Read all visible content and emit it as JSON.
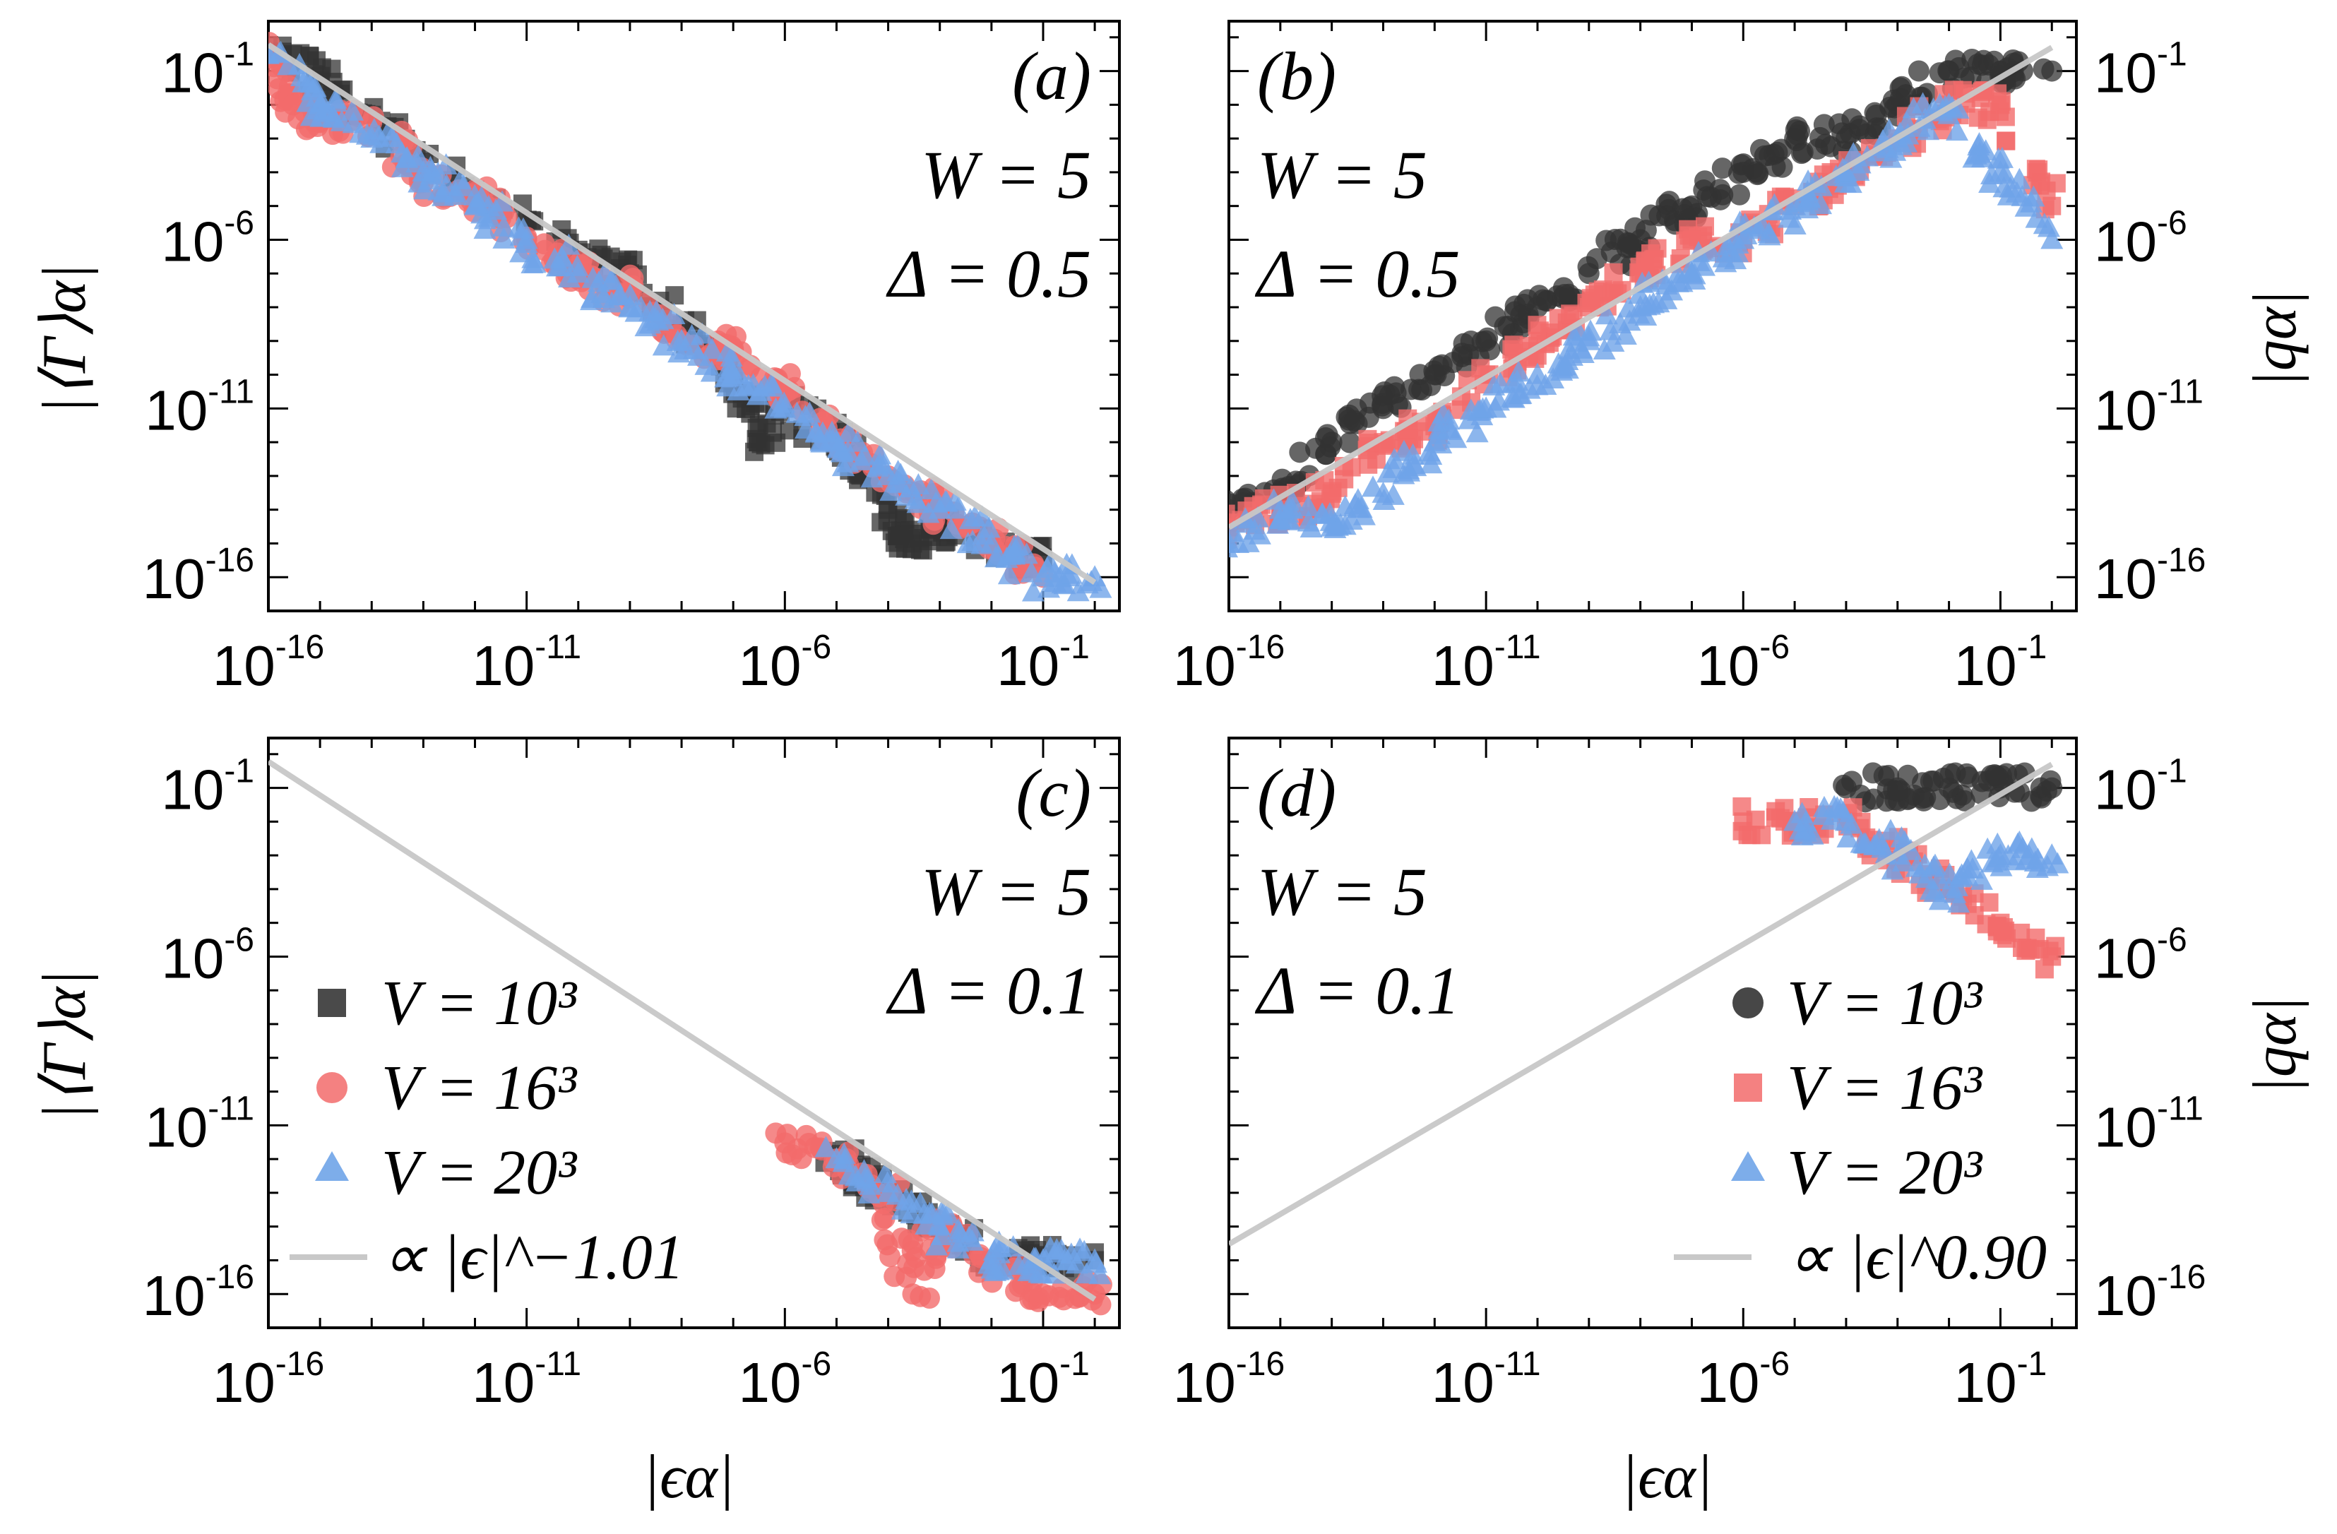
{
  "figure": {
    "x_axis_title": "|ϵα|",
    "left_y_axis_title": "|⟨Γ⟩α|",
    "right_y_axis_title": "|qα|"
  },
  "legend_left": {
    "entries": [
      {
        "label": "V = 10³",
        "marker": "square",
        "color": "#333333"
      },
      {
        "label": "V = 16³",
        "marker": "circle",
        "color": "#f26b6b"
      },
      {
        "label": "V = 20³",
        "marker": "triangle",
        "color": "#6fa4e8"
      }
    ],
    "fit_label": "∝ |ϵ|^−1.01"
  },
  "legend_right": {
    "entries": [
      {
        "label": "V = 10³",
        "marker": "circle",
        "color": "#333333"
      },
      {
        "label": "V = 16³",
        "marker": "square",
        "color": "#f26b6b"
      },
      {
        "label": "V = 20³",
        "marker": "triangle",
        "color": "#6fa4e8"
      }
    ],
    "fit_label": "∝ |ϵ|^0.90"
  },
  "chart_data": [
    {
      "type": "scatter",
      "panel": "(a)",
      "annotation": [
        "W = 5",
        "Δ = 0.5"
      ],
      "xlabel": "",
      "ylabel": "|⟨Γ⟩α|",
      "x_scale": "log",
      "y_scale": "log",
      "xlim": [
        1e-16,
        3.0
      ],
      "ylim": [
        1e-17,
        3.0
      ],
      "x_ticks": [
        "10^-16",
        "10^-11",
        "10^-6",
        "10^-1"
      ],
      "y_ticks": [
        "10^-1",
        "10^-6",
        "10^-11",
        "10^-16"
      ],
      "fit": {
        "exponent": -1.01,
        "points": [
          [
            1e-16,
            0.6
          ],
          [
            1.0,
            7e-17
          ]
        ]
      },
      "series": [
        {
          "name": "V = 10³",
          "marker": "square",
          "color": "#333333",
          "points": [
            [
              1e-16,
              0.5
            ],
            [
              1e-15,
              0.05
            ],
            [
              1e-14,
              0.005
            ],
            [
              1e-12,
              3e-05
            ],
            [
              1e-10,
              5e-07
            ],
            [
              1e-09,
              1e-07
            ],
            [
              1e-08,
              3e-09
            ],
            [
              1e-07,
              1e-10
            ],
            [
              3e-07,
              1e-12
            ],
            [
              1e-06,
              1e-11
            ],
            [
              1e-05,
              1e-12
            ],
            [
              3e-05,
              3e-13
            ],
            [
              0.0001,
              1e-14
            ],
            [
              0.0003,
              1e-15
            ],
            [
              0.001,
              3e-15
            ],
            [
              0.01,
              1e-15
            ],
            [
              0.1,
              3e-16
            ]
          ]
        },
        {
          "name": "V = 16³",
          "marker": "circle",
          "color": "#f26b6b",
          "points": [
            [
              1e-16,
              0.3
            ],
            [
              3e-16,
              0.01
            ],
            [
              1e-15,
              0.003
            ],
            [
              1e-14,
              0.003
            ],
            [
              1e-13,
              5e-05
            ],
            [
              1e-12,
              3e-05
            ],
            [
              1e-11,
              1e-06
            ],
            [
              1e-10,
              1e-07
            ],
            [
              1e-09,
              3e-08
            ],
            [
              1e-08,
              1e-09
            ],
            [
              1e-07,
              5e-10
            ],
            [
              1e-06,
              3e-11
            ],
            [
              1e-05,
              1e-12
            ],
            [
              0.0001,
              1e-13
            ],
            [
              0.001,
              1e-14
            ],
            [
              0.01,
              1e-15
            ],
            [
              0.1,
              1e-16
            ]
          ]
        },
        {
          "name": "V = 20³",
          "marker": "triangle",
          "color": "#6fa4e8",
          "points": [
            [
              1e-16,
              0.3
            ],
            [
              1e-15,
              0.01
            ],
            [
              1e-14,
              0.001
            ],
            [
              1e-13,
              0.0001
            ],
            [
              1e-12,
              1e-05
            ],
            [
              1e-11,
              1e-06
            ],
            [
              1e-10,
              1e-07
            ],
            [
              1e-09,
              1e-08
            ],
            [
              1e-08,
              1e-09
            ],
            [
              1e-07,
              1e-10
            ],
            [
              1e-06,
              1e-11
            ],
            [
              1e-05,
              1e-12
            ],
            [
              0.0001,
              1e-13
            ],
            [
              0.001,
              1e-14
            ],
            [
              0.01,
              1e-15
            ],
            [
              0.1,
              1e-16
            ],
            [
              1.0,
              1e-16
            ]
          ]
        }
      ]
    },
    {
      "type": "scatter",
      "panel": "(b)",
      "annotation": [
        "W = 5",
        "Δ = 0.5"
      ],
      "xlabel": "",
      "ylabel": "|qα|",
      "x_scale": "log",
      "y_scale": "log",
      "xlim": [
        1e-16,
        3.0
      ],
      "ylim": [
        1e-17,
        3.0
      ],
      "x_ticks": [
        "10^-16",
        "10^-11",
        "10^-6",
        "10^-1"
      ],
      "y_ticks": [
        "10^-1",
        "10^-6",
        "10^-11",
        "10^-16"
      ],
      "fit": {
        "exponent": 0.9,
        "points": [
          [
            1e-16,
            3e-15
          ],
          [
            1.0,
            0.5
          ]
        ]
      },
      "series": [
        {
          "name": "V = 10³",
          "marker": "circle",
          "color": "#333333",
          "points": [
            [
              1e-16,
              1e-14
            ],
            [
              1e-15,
              3e-14
            ],
            [
              1e-14,
              1e-12
            ],
            [
              1e-13,
              1e-11
            ],
            [
              1e-12,
              1e-10
            ],
            [
              1e-11,
              1e-09
            ],
            [
              1e-10,
              1e-08
            ],
            [
              1e-09,
              1e-07
            ],
            [
              1e-08,
              1e-06
            ],
            [
              1e-07,
              1e-05
            ],
            [
              1e-06,
              0.0001
            ],
            [
              1e-05,
              0.001
            ],
            [
              0.0001,
              0.001
            ],
            [
              0.001,
              0.01
            ],
            [
              0.01,
              0.1
            ],
            [
              0.1,
              0.1
            ],
            [
              1.0,
              0.1
            ]
          ]
        },
        {
          "name": "V = 16³",
          "marker": "square",
          "color": "#f26b6b",
          "points": [
            [
              1e-16,
              3e-15
            ],
            [
              1e-15,
              1e-14
            ],
            [
              1e-14,
              3e-14
            ],
            [
              1e-13,
              1e-12
            ],
            [
              1e-12,
              3e-12
            ],
            [
              1e-11,
              1e-10
            ],
            [
              1e-10,
              1e-09
            ],
            [
              1e-09,
              1e-08
            ],
            [
              1e-08,
              1e-07
            ],
            [
              1e-07,
              1e-06
            ],
            [
              1e-06,
              1e-06
            ],
            [
              1e-05,
              1e-05
            ],
            [
              0.0001,
              0.0001
            ],
            [
              0.001,
              0.001
            ],
            [
              0.01,
              0.01
            ],
            [
              0.1,
              0.01
            ],
            [
              1.0,
              1e-05
            ]
          ]
        },
        {
          "name": "V = 20³",
          "marker": "triangle",
          "color": "#6fa4e8",
          "points": [
            [
              1e-16,
              1e-15
            ],
            [
              1e-15,
              1e-14
            ],
            [
              1e-14,
              3e-15
            ],
            [
              1e-13,
              3e-14
            ],
            [
              1e-12,
              1e-12
            ],
            [
              1e-11,
              1e-11
            ],
            [
              1e-10,
              1e-10
            ],
            [
              1e-09,
              1e-09
            ],
            [
              1e-08,
              1e-08
            ],
            [
              1e-07,
              1e-07
            ],
            [
              1e-06,
              1e-06
            ],
            [
              1e-05,
              1e-05
            ],
            [
              0.0001,
              0.0001
            ],
            [
              0.001,
              0.001
            ],
            [
              0.01,
              0.01
            ],
            [
              0.1,
              0.0001
            ],
            [
              1.0,
              1e-06
            ]
          ]
        }
      ]
    },
    {
      "type": "scatter",
      "panel": "(c)",
      "annotation": [
        "W = 5",
        "Δ = 0.1"
      ],
      "xlabel": "|ϵα|",
      "ylabel": "|⟨Γ⟩α|",
      "x_scale": "log",
      "y_scale": "log",
      "xlim": [
        1e-16,
        3.0
      ],
      "ylim": [
        1e-17,
        3.0
      ],
      "x_ticks": [
        "10^-16",
        "10^-11",
        "10^-6",
        "10^-1"
      ],
      "y_ticks": [
        "10^-1",
        "10^-6",
        "10^-11",
        "10^-16"
      ],
      "fit": {
        "exponent": -1.01,
        "points": [
          [
            1e-16,
            0.6
          ],
          [
            1.0,
            7e-17
          ]
        ]
      },
      "series": [
        {
          "name": "V = 10³",
          "marker": "square",
          "color": "#333333",
          "points": [
            [
              1e-05,
              1e-12
            ],
            [
              3e-05,
              3e-13
            ],
            [
              0.0001,
              1e-13
            ],
            [
              0.001,
              1e-14
            ],
            [
              0.01,
              1e-15
            ],
            [
              0.1,
              1e-15
            ],
            [
              1.0,
              1e-15
            ]
          ]
        },
        {
          "name": "V = 16³",
          "marker": "circle",
          "color": "#f26b6b",
          "points": [
            [
              1e-06,
              3e-12
            ],
            [
              1e-05,
              1e-12
            ],
            [
              0.0001,
              1e-13
            ],
            [
              0.0003,
              1e-16
            ],
            [
              0.001,
              1e-14
            ],
            [
              0.01,
              1e-15
            ],
            [
              0.1,
              1e-16
            ],
            [
              1.0,
              1e-16
            ]
          ]
        },
        {
          "name": "V = 20³",
          "marker": "triangle",
          "color": "#6fa4e8",
          "points": [
            [
              1e-05,
              1e-12
            ],
            [
              0.0001,
              1e-13
            ],
            [
              0.001,
              1e-14
            ],
            [
              0.01,
              1e-15
            ],
            [
              0.1,
              1e-15
            ],
            [
              1.0,
              1e-15
            ]
          ]
        }
      ]
    },
    {
      "type": "scatter",
      "panel": "(d)",
      "annotation": [
        "W = 5",
        "Δ = 0.1"
      ],
      "xlabel": "|ϵα|",
      "ylabel": "|qα|",
      "x_scale": "log",
      "y_scale": "log",
      "xlim": [
        1e-16,
        3.0
      ],
      "ylim": [
        1e-17,
        3.0
      ],
      "x_ticks": [
        "10^-16",
        "10^-11",
        "10^-6",
        "10^-1"
      ],
      "y_ticks": [
        "10^-1",
        "10^-6",
        "10^-11",
        "10^-16"
      ],
      "fit": {
        "exponent": 0.9,
        "points": [
          [
            1e-16,
            3e-15
          ],
          [
            1.0,
            0.5
          ]
        ]
      },
      "series": [
        {
          "name": "V = 10³",
          "marker": "circle",
          "color": "#333333",
          "points": [
            [
              0.0001,
              0.1
            ],
            [
              0.001,
              0.1
            ],
            [
              0.01,
              0.1
            ],
            [
              0.1,
              0.1
            ],
            [
              1.0,
              0.1
            ]
          ]
        },
        {
          "name": "V = 16³",
          "marker": "square",
          "color": "#f26b6b",
          "points": [
            [
              1e-06,
              0.01
            ],
            [
              1e-05,
              0.01
            ],
            [
              0.0001,
              0.01
            ],
            [
              0.001,
              0.001
            ],
            [
              0.01,
              0.0001
            ],
            [
              0.1,
              1e-05
            ],
            [
              1.0,
              1e-06
            ]
          ]
        },
        {
          "name": "V = 20³",
          "marker": "triangle",
          "color": "#6fa4e8",
          "points": [
            [
              1e-05,
              0.01
            ],
            [
              0.0001,
              0.01
            ],
            [
              0.001,
              0.001
            ],
            [
              0.01,
              0.0001
            ],
            [
              0.1,
              0.001
            ],
            [
              1.0,
              0.001
            ]
          ]
        }
      ]
    }
  ]
}
